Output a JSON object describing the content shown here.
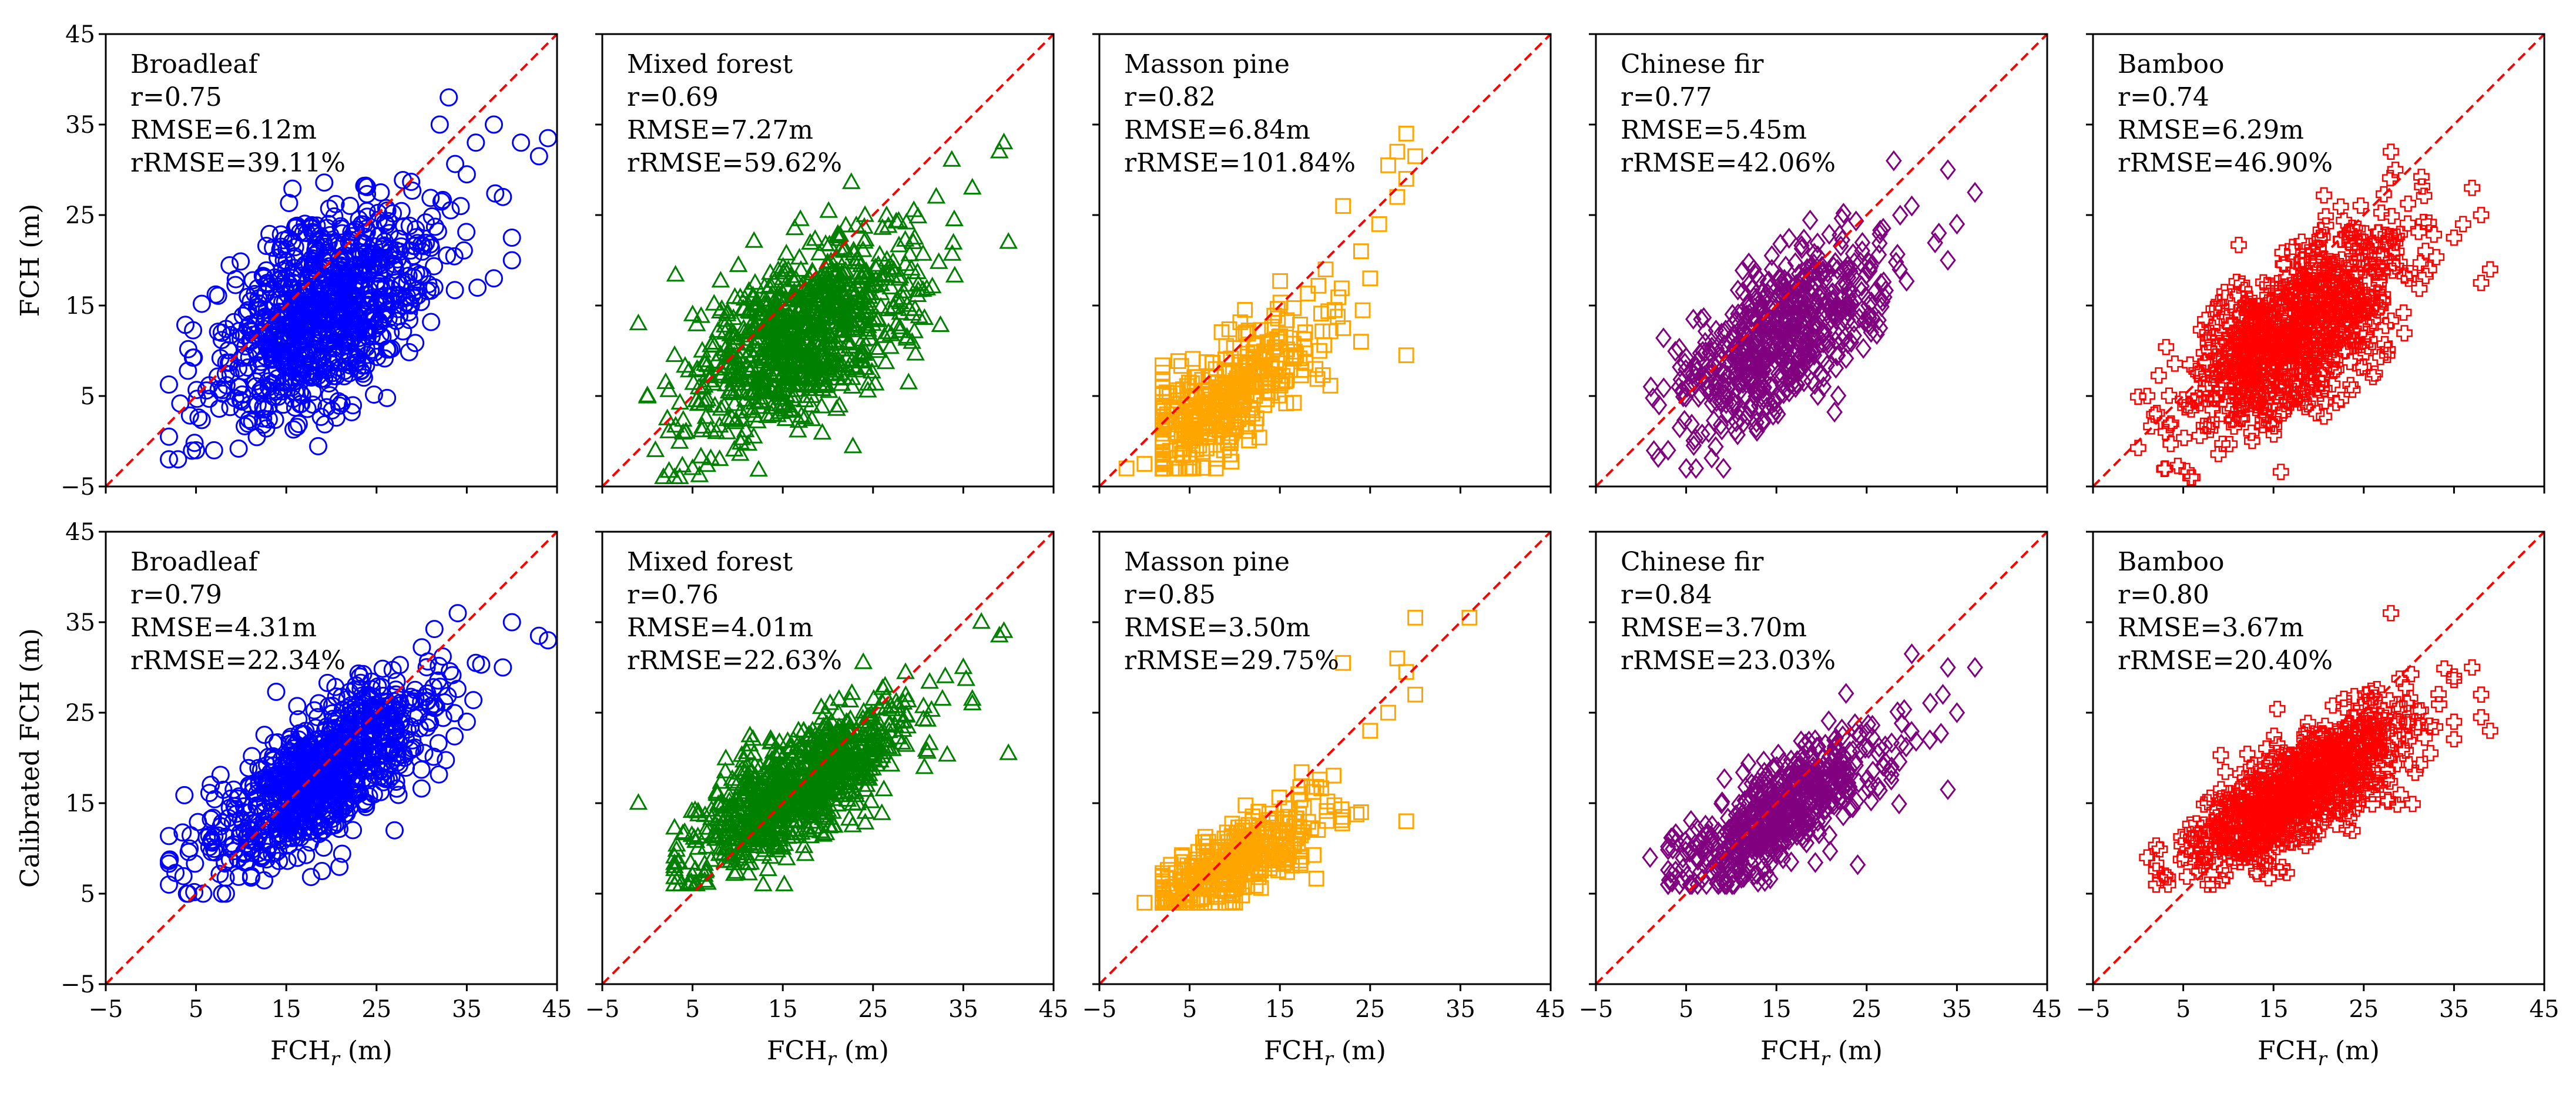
{
  "figure": {
    "row_ylabels": [
      "FCH (m)",
      "Calibrated FCH (m)"
    ],
    "xlabel_main": "FCH",
    "xlabel_sub": "r",
    "xlabel_unit": " (m)"
  },
  "chart_data": [
    {
      "type": "scatter",
      "row": 0,
      "col": 0,
      "name": "Broadleaf",
      "stats": [
        "r=0.75",
        "RMSE=6.12m",
        "rRMSE=39.11%"
      ],
      "color": "#0000ff",
      "marker": "circle",
      "xlim": [
        -5,
        45
      ],
      "ylim": [
        -5,
        45
      ],
      "xticks": [
        -5,
        5,
        15,
        25,
        35,
        45
      ],
      "yticks": [
        -5,
        5,
        15,
        25,
        35,
        45
      ],
      "tick_labels_x": false,
      "tick_labels_y": true,
      "one_to_one_line": true,
      "line_color": "#ff0000",
      "cloud": {
        "x_center": 19,
        "x_sd": 6,
        "slope": 0.5,
        "intercept": 5,
        "noise_sd": 5,
        "x_range": [
          2,
          44
        ],
        "y_range": [
          -2,
          38
        ],
        "n": 900
      },
      "points": [
        [
          44,
          33.5
        ],
        [
          43,
          31.5
        ],
        [
          38,
          35
        ],
        [
          36,
          33
        ],
        [
          41,
          33
        ],
        [
          39,
          27
        ],
        [
          33,
          38
        ],
        [
          32,
          35
        ],
        [
          40,
          20
        ],
        [
          38,
          18
        ],
        [
          40,
          22.5
        ],
        [
          35,
          29.5
        ],
        [
          2,
          0.5
        ],
        [
          3,
          -2
        ],
        [
          5,
          -1
        ],
        [
          7,
          -1
        ]
      ]
    },
    {
      "type": "scatter",
      "row": 0,
      "col": 1,
      "name": "Mixed forest",
      "stats": [
        "r=0.69",
        "RMSE=7.27m",
        "rRMSE=59.62%"
      ],
      "color": "#008000",
      "marker": "triangle",
      "xlim": [
        -5,
        45
      ],
      "ylim": [
        -5,
        45
      ],
      "xticks": [
        -5,
        5,
        15,
        25,
        35,
        45
      ],
      "yticks": [
        -5,
        5,
        15,
        25,
        35,
        45
      ],
      "tick_labels_x": false,
      "tick_labels_y": false,
      "one_to_one_line": true,
      "line_color": "#ff0000",
      "cloud": {
        "x_center": 17,
        "x_sd": 6,
        "slope": 0.45,
        "intercept": 4,
        "noise_sd": 4.5,
        "x_range": [
          0,
          38
        ],
        "y_range": [
          -4,
          32
        ],
        "n": 900
      },
      "points": [
        [
          39.5,
          33
        ],
        [
          39,
          32
        ],
        [
          40,
          22
        ],
        [
          36,
          28
        ],
        [
          34,
          24.5
        ],
        [
          32,
          27
        ],
        [
          -1,
          13
        ],
        [
          3,
          -4
        ],
        [
          5,
          -3
        ],
        [
          8,
          -2
        ]
      ]
    },
    {
      "type": "scatter",
      "row": 0,
      "col": 2,
      "name": "Masson pine",
      "stats": [
        "r=0.82",
        "RMSE=6.84m",
        "rRMSE=101.84%"
      ],
      "color": "#ffa500",
      "marker": "square",
      "xlim": [
        -5,
        45
      ],
      "ylim": [
        -5,
        45
      ],
      "xticks": [
        -5,
        5,
        15,
        25,
        35,
        45
      ],
      "yticks": [
        -5,
        5,
        15,
        25,
        35,
        45
      ],
      "tick_labels_x": false,
      "tick_labels_y": false,
      "one_to_one_line": true,
      "line_color": "#ff0000",
      "cloud": {
        "x_center": 9,
        "x_sd": 5,
        "slope": 0.65,
        "intercept": -1,
        "noise_sd": 3,
        "x_range": [
          2,
          30
        ],
        "y_range": [
          -3,
          27
        ],
        "n": 380
      },
      "points": [
        [
          29,
          34
        ],
        [
          30,
          31.5
        ],
        [
          28,
          32
        ],
        [
          27,
          30.5
        ],
        [
          26,
          24
        ],
        [
          24,
          21
        ],
        [
          22,
          26
        ],
        [
          29,
          29
        ],
        [
          28,
          27
        ],
        [
          25,
          18
        ],
        [
          29,
          9.5
        ],
        [
          24,
          11
        ],
        [
          22,
          12.5
        ],
        [
          -2,
          -3
        ],
        [
          0,
          -2.5
        ]
      ]
    },
    {
      "type": "scatter",
      "row": 0,
      "col": 3,
      "name": "Chinese fir",
      "stats": [
        "r=0.77",
        "RMSE=5.45m",
        "rRMSE=42.06%"
      ],
      "color": "#800080",
      "marker": "diamond",
      "xlim": [
        -5,
        45
      ],
      "ylim": [
        -5,
        45
      ],
      "xticks": [
        -5,
        5,
        15,
        25,
        35,
        45
      ],
      "yticks": [
        -5,
        5,
        15,
        25,
        35,
        45
      ],
      "tick_labels_x": false,
      "tick_labels_y": false,
      "one_to_one_line": true,
      "line_color": "#ff0000",
      "cloud": {
        "x_center": 16,
        "x_sd": 5.5,
        "slope": 0.55,
        "intercept": 3,
        "noise_sd": 4,
        "x_range": [
          1,
          35
        ],
        "y_range": [
          -3,
          30
        ],
        "n": 650
      },
      "points": [
        [
          34,
          30
        ],
        [
          37,
          27.5
        ],
        [
          35,
          24
        ],
        [
          34,
          20
        ],
        [
          33,
          23
        ],
        [
          28,
          31
        ],
        [
          30,
          26
        ],
        [
          2,
          4
        ],
        [
          3,
          -1
        ],
        [
          5,
          -3
        ]
      ]
    },
    {
      "type": "scatter",
      "row": 0,
      "col": 4,
      "name": "Bamboo",
      "stats": [
        "r=0.74",
        "RMSE=6.29m",
        "rRMSE=46.90%"
      ],
      "color": "#ff0000",
      "marker": "plus",
      "xlim": [
        -5,
        45
      ],
      "ylim": [
        -5,
        45
      ],
      "xticks": [
        -5,
        5,
        15,
        25,
        35,
        45
      ],
      "yticks": [
        -5,
        5,
        15,
        25,
        35,
        45
      ],
      "tick_labels_x": false,
      "tick_labels_y": false,
      "one_to_one_line": true,
      "line_color": "#ff0000",
      "cloud": {
        "x_center": 17,
        "x_sd": 6,
        "slope": 0.6,
        "intercept": 2,
        "noise_sd": 4.5,
        "x_range": [
          0,
          36
        ],
        "y_range": [
          -4,
          30
        ],
        "n": 850
      },
      "points": [
        [
          28,
          32
        ],
        [
          37,
          28
        ],
        [
          38,
          25
        ],
        [
          39,
          19
        ],
        [
          38,
          17.5
        ],
        [
          35,
          22.5
        ],
        [
          36,
          24
        ],
        [
          1,
          5
        ],
        [
          3,
          -3
        ],
        [
          6,
          -4
        ]
      ]
    },
    {
      "type": "scatter",
      "row": 1,
      "col": 0,
      "name": "Broadleaf",
      "stats": [
        "r=0.79",
        "RMSE=4.31m",
        "rRMSE=22.34%"
      ],
      "color": "#0000ff",
      "marker": "circle",
      "xlim": [
        -5,
        45
      ],
      "ylim": [
        -5,
        45
      ],
      "xticks": [
        -5,
        5,
        15,
        25,
        35,
        45
      ],
      "yticks": [
        -5,
        5,
        15,
        25,
        35,
        45
      ],
      "tick_labels_x": true,
      "tick_labels_y": true,
      "one_to_one_line": true,
      "line_color": "#ff0000",
      "cloud": {
        "x_center": 19,
        "x_sd": 6,
        "slope": 0.6,
        "intercept": 7,
        "noise_sd": 3.5,
        "x_range": [
          2,
          40
        ],
        "y_range": [
          5,
          37
        ],
        "n": 900
      },
      "points": [
        [
          44,
          33
        ],
        [
          43,
          33.5
        ],
        [
          40,
          35
        ],
        [
          39,
          30
        ],
        [
          36,
          30.5
        ],
        [
          34,
          36
        ],
        [
          35,
          24
        ],
        [
          27,
          12
        ],
        [
          2,
          6
        ],
        [
          4,
          5
        ]
      ]
    },
    {
      "type": "scatter",
      "row": 1,
      "col": 1,
      "name": "Mixed forest",
      "stats": [
        "r=0.76",
        "RMSE=4.01m",
        "rRMSE=22.63%"
      ],
      "color": "#008000",
      "marker": "triangle",
      "xlim": [
        -5,
        45
      ],
      "ylim": [
        -5,
        45
      ],
      "xticks": [
        -5,
        5,
        15,
        25,
        35,
        45
      ],
      "yticks": [
        -5,
        5,
        15,
        25,
        35,
        45
      ],
      "tick_labels_x": true,
      "tick_labels_y": false,
      "one_to_one_line": true,
      "line_color": "#ff0000",
      "cloud": {
        "x_center": 17,
        "x_sd": 6,
        "slope": 0.55,
        "intercept": 7.5,
        "noise_sd": 3,
        "x_range": [
          3,
          36
        ],
        "y_range": [
          6,
          33
        ],
        "n": 900
      },
      "points": [
        [
          39.5,
          34
        ],
        [
          39,
          33.5
        ],
        [
          37,
          35
        ],
        [
          40,
          20.5
        ],
        [
          36,
          26
        ],
        [
          35,
          30
        ],
        [
          33,
          29
        ],
        [
          -1,
          15
        ],
        [
          3,
          8
        ],
        [
          5,
          7
        ]
      ]
    },
    {
      "type": "scatter",
      "row": 1,
      "col": 2,
      "name": "Masson pine",
      "stats": [
        "r=0.85",
        "RMSE=3.50m",
        "rRMSE=29.75%"
      ],
      "color": "#ffa500",
      "marker": "square",
      "xlim": [
        -5,
        45
      ],
      "ylim": [
        -5,
        45
      ],
      "xticks": [
        -5,
        5,
        15,
        25,
        35,
        45
      ],
      "yticks": [
        -5,
        5,
        15,
        25,
        35,
        45
      ],
      "tick_labels_x": true,
      "tick_labels_y": false,
      "one_to_one_line": true,
      "line_color": "#ff0000",
      "cloud": {
        "x_center": 10,
        "x_sd": 5,
        "slope": 0.55,
        "intercept": 3,
        "noise_sd": 2.2,
        "x_range": [
          2,
          30
        ],
        "y_range": [
          4,
          30
        ],
        "n": 380
      },
      "points": [
        [
          30,
          35.5
        ],
        [
          36,
          35.5
        ],
        [
          29,
          29.5
        ],
        [
          28,
          31
        ],
        [
          30,
          27
        ],
        [
          27,
          25
        ],
        [
          25,
          23
        ],
        [
          22,
          30.5
        ],
        [
          29,
          13
        ],
        [
          24,
          14
        ],
        [
          0,
          4
        ]
      ]
    },
    {
      "type": "scatter",
      "row": 1,
      "col": 3,
      "name": "Chinese fir",
      "stats": [
        "r=0.84",
        "RMSE=3.70m",
        "rRMSE=23.03%"
      ],
      "color": "#800080",
      "marker": "diamond",
      "xlim": [
        -5,
        45
      ],
      "ylim": [
        -5,
        45
      ],
      "xticks": [
        -5,
        5,
        15,
        25,
        35,
        45
      ],
      "yticks": [
        -5,
        5,
        15,
        25,
        35,
        45
      ],
      "tick_labels_x": true,
      "tick_labels_y": false,
      "one_to_one_line": true,
      "line_color": "#ff0000",
      "cloud": {
        "x_center": 16,
        "x_sd": 5.5,
        "slope": 0.6,
        "intercept": 5,
        "noise_sd": 2.8,
        "x_range": [
          3,
          34
        ],
        "y_range": [
          6,
          30
        ],
        "n": 650
      },
      "points": [
        [
          34,
          30
        ],
        [
          37,
          30
        ],
        [
          35,
          25
        ],
        [
          34,
          16.5
        ],
        [
          32,
          22
        ],
        [
          30,
          31.5
        ],
        [
          1,
          9
        ]
      ]
    },
    {
      "type": "scatter",
      "row": 1,
      "col": 4,
      "name": "Bamboo",
      "stats": [
        "r=0.80",
        "RMSE=3.67m",
        "rRMSE=20.40%"
      ],
      "color": "#ff0000",
      "marker": "plus",
      "xlim": [
        -5,
        45
      ],
      "ylim": [
        -5,
        45
      ],
      "xticks": [
        -5,
        5,
        15,
        25,
        35,
        45
      ],
      "yticks": [
        -5,
        5,
        15,
        25,
        35,
        45
      ],
      "tick_labels_x": true,
      "tick_labels_y": false,
      "one_to_one_line": true,
      "line_color": "#ff0000",
      "cloud": {
        "x_center": 18,
        "x_sd": 6,
        "slope": 0.55,
        "intercept": 6.5,
        "noise_sd": 3,
        "x_range": [
          2,
          35
        ],
        "y_range": [
          6,
          32
        ],
        "n": 850
      },
      "points": [
        [
          28,
          36
        ],
        [
          37,
          30
        ],
        [
          38,
          27
        ],
        [
          39,
          23
        ],
        [
          38,
          24.5
        ],
        [
          35,
          29
        ],
        [
          35,
          24
        ],
        [
          1,
          9
        ],
        [
          3,
          7
        ]
      ]
    }
  ]
}
